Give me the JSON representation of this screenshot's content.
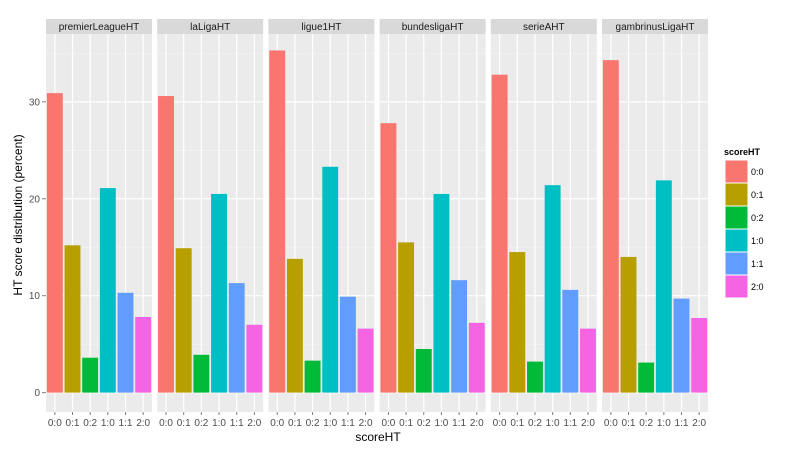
{
  "chart_data": {
    "type": "bar",
    "xlabel": "scoreHT",
    "ylabel": "HT score distribution (percent)",
    "ylim": [
      -2,
      37
    ],
    "y_ticks": [
      0,
      10,
      20,
      30
    ],
    "categories": [
      "0:0",
      "0:1",
      "0:2",
      "1:0",
      "1:1",
      "2:0"
    ],
    "colors": [
      "#F8766D",
      "#B79F00",
      "#00BA38",
      "#00BFC4",
      "#619CFF",
      "#F564E3"
    ],
    "legend": {
      "title": "scoreHT",
      "position": "right"
    },
    "grid": true,
    "facets": [
      {
        "name": "premierLeagueHT",
        "values": [
          30.9,
          15.2,
          3.6,
          21.1,
          10.3,
          7.8
        ]
      },
      {
        "name": "laLigaHT",
        "values": [
          30.6,
          14.9,
          3.9,
          20.5,
          11.3,
          7.0
        ]
      },
      {
        "name": "ligue1HT",
        "values": [
          35.3,
          13.8,
          3.3,
          23.3,
          9.9,
          6.6
        ]
      },
      {
        "name": "bundesligaHT",
        "values": [
          27.8,
          15.5,
          4.5,
          20.5,
          11.6,
          7.2
        ]
      },
      {
        "name": "serieAHT",
        "values": [
          32.8,
          14.5,
          3.2,
          21.4,
          10.6,
          6.6
        ]
      },
      {
        "name": "gambrinusLigaHT",
        "values": [
          34.3,
          14.0,
          3.1,
          21.9,
          9.7,
          7.7
        ]
      }
    ]
  }
}
